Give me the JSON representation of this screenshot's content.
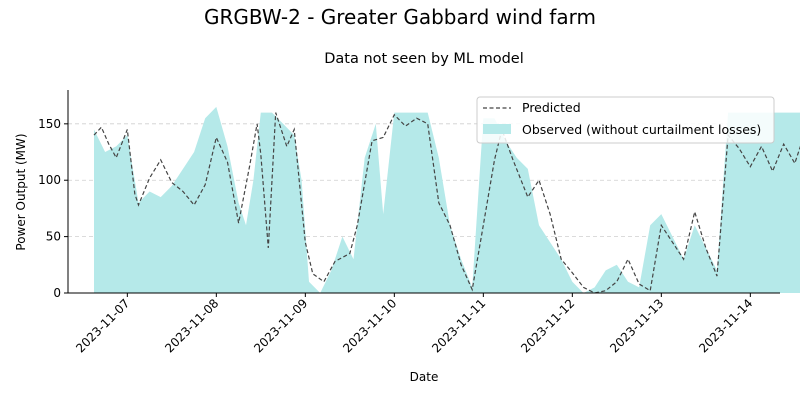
{
  "chart_data": {
    "type": "area",
    "suptitle": "GRGBW-2 - Greater Gabbard wind farm",
    "title": "Data not seen by ML model",
    "xlabel": "Date",
    "ylabel": "Power Output (MW)",
    "xlim": [
      "2023-11-06T08:00",
      "2023-11-14T08:00"
    ],
    "ylim": [
      0,
      180
    ],
    "yticks": [
      0,
      50,
      100,
      150
    ],
    "xticks": [
      "2023-11-07",
      "2023-11-08",
      "2023-11-09",
      "2023-11-10",
      "2023-11-11",
      "2023-11-12",
      "2023-11-13",
      "2023-11-14"
    ],
    "grid": "horizontal dashed",
    "legend_position": "upper right",
    "colors": {
      "observed_fill": "#b5e9e9",
      "predicted_line": "#444444"
    },
    "series": [
      {
        "name": "Predicted",
        "style": "dashed line",
        "points": [
          [
            "2023-11-06T15:00",
            140
          ],
          [
            "2023-11-06T17:00",
            147
          ],
          [
            "2023-11-06T19:00",
            132
          ],
          [
            "2023-11-06T21:00",
            120
          ],
          [
            "2023-11-07T00:00",
            145
          ],
          [
            "2023-11-07T02:00",
            88
          ],
          [
            "2023-11-07T03:00",
            78
          ],
          [
            "2023-11-07T06:00",
            102
          ],
          [
            "2023-11-07T09:00",
            118
          ],
          [
            "2023-11-07T12:00",
            98
          ],
          [
            "2023-11-07T15:00",
            90
          ],
          [
            "2023-11-07T18:00",
            78
          ],
          [
            "2023-11-07T21:00",
            96
          ],
          [
            "2023-11-08T00:00",
            138
          ],
          [
            "2023-11-08T03:00",
            116
          ],
          [
            "2023-11-08T06:00",
            62
          ],
          [
            "2023-11-08T09:00",
            113
          ],
          [
            "2023-11-08T11:00",
            150
          ],
          [
            "2023-11-08T12:00",
            123
          ],
          [
            "2023-11-08T14:00",
            40
          ],
          [
            "2023-11-08T16:00",
            160
          ],
          [
            "2023-11-08T19:00",
            130
          ],
          [
            "2023-11-08T21:00",
            145
          ],
          [
            "2023-11-09T00:00",
            45
          ],
          [
            "2023-11-09T02:00",
            17
          ],
          [
            "2023-11-09T05:00",
            10
          ],
          [
            "2023-11-09T08:00",
            28
          ],
          [
            "2023-11-09T12:00",
            35
          ],
          [
            "2023-11-09T14:00",
            60
          ],
          [
            "2023-11-09T18:00",
            135
          ],
          [
            "2023-11-09T21:00",
            138
          ],
          [
            "2023-11-10T00:00",
            158
          ],
          [
            "2023-11-10T03:00",
            148
          ],
          [
            "2023-11-10T06:00",
            155
          ],
          [
            "2023-11-10T09:00",
            150
          ],
          [
            "2023-11-10T12:00",
            80
          ],
          [
            "2023-11-10T15:00",
            60
          ],
          [
            "2023-11-10T18:00",
            25
          ],
          [
            "2023-11-10T21:00",
            3
          ],
          [
            "2023-11-11T00:00",
            60
          ],
          [
            "2023-11-11T03:00",
            118
          ],
          [
            "2023-11-11T05:00",
            145
          ],
          [
            "2023-11-11T08:00",
            118
          ],
          [
            "2023-11-11T12:00",
            85
          ],
          [
            "2023-11-11T15:00",
            100
          ],
          [
            "2023-11-11T18:00",
            70
          ],
          [
            "2023-11-11T21:00",
            30
          ],
          [
            "2023-11-12T00:00",
            18
          ],
          [
            "2023-11-12T03:00",
            5
          ],
          [
            "2023-11-12T06:00",
            0
          ],
          [
            "2023-11-12T09:00",
            2
          ],
          [
            "2023-11-12T12:00",
            10
          ],
          [
            "2023-11-12T15:00",
            30
          ],
          [
            "2023-11-12T18:00",
            8
          ],
          [
            "2023-11-12T21:00",
            2
          ],
          [
            "2023-11-13T00:00",
            60
          ],
          [
            "2023-11-13T03:00",
            45
          ],
          [
            "2023-11-13T06:00",
            30
          ],
          [
            "2023-11-13T09:00",
            72
          ],
          [
            "2023-11-13T12:00",
            40
          ],
          [
            "2023-11-13T15:00",
            15
          ],
          [
            "2023-11-13T18:00",
            140
          ],
          [
            "2023-11-13T21:00",
            128
          ],
          [
            "2023-11-14T00:00",
            112
          ],
          [
            "2023-11-14T03:00",
            130
          ],
          [
            "2023-11-14T06:00",
            108
          ],
          [
            "2023-11-14T09:00",
            132
          ],
          [
            "2023-11-14T12:00",
            115
          ],
          [
            "2023-11-14T15:00",
            145
          ],
          [
            "2023-11-14T17:00",
            150
          ]
        ]
      },
      {
        "name": "Observed (without curtailment losses)",
        "style": "filled area",
        "points": [
          [
            "2023-11-06T15:00",
            145
          ],
          [
            "2023-11-06T18:00",
            125
          ],
          [
            "2023-11-06T21:00",
            130
          ],
          [
            "2023-11-07T00:00",
            140
          ],
          [
            "2023-11-07T03:00",
            80
          ],
          [
            "2023-11-07T06:00",
            90
          ],
          [
            "2023-11-07T09:00",
            85
          ],
          [
            "2023-11-07T12:00",
            95
          ],
          [
            "2023-11-07T15:00",
            110
          ],
          [
            "2023-11-07T18:00",
            125
          ],
          [
            "2023-11-07T21:00",
            155
          ],
          [
            "2023-11-08T00:00",
            165
          ],
          [
            "2023-11-08T03:00",
            130
          ],
          [
            "2023-11-08T06:00",
            80
          ],
          [
            "2023-11-08T08:00",
            60
          ],
          [
            "2023-11-08T10:00",
            100
          ],
          [
            "2023-11-08T12:00",
            160
          ],
          [
            "2023-11-08T15:00",
            160
          ],
          [
            "2023-11-08T18:00",
            150
          ],
          [
            "2023-11-08T21:00",
            140
          ],
          [
            "2023-11-08T23:00",
            100
          ],
          [
            "2023-11-09T01:00",
            10
          ],
          [
            "2023-11-09T04:00",
            0
          ],
          [
            "2023-11-09T07:00",
            20
          ],
          [
            "2023-11-09T10:00",
            50
          ],
          [
            "2023-11-09T13:00",
            30
          ],
          [
            "2023-11-09T16:00",
            120
          ],
          [
            "2023-11-09T19:00",
            150
          ],
          [
            "2023-11-09T21:00",
            70
          ],
          [
            "2023-11-10T00:00",
            160
          ],
          [
            "2023-11-10T03:00",
            160
          ],
          [
            "2023-11-10T06:00",
            160
          ],
          [
            "2023-11-10T09:00",
            160
          ],
          [
            "2023-11-10T12:00",
            120
          ],
          [
            "2023-11-10T15:00",
            60
          ],
          [
            "2023-11-10T18:00",
            30
          ],
          [
            "2023-11-10T21:00",
            5
          ],
          [
            "2023-11-11T00:00",
            155
          ],
          [
            "2023-11-11T03:00",
            155
          ],
          [
            "2023-11-11T06:00",
            135
          ],
          [
            "2023-11-11T09:00",
            120
          ],
          [
            "2023-11-11T12:00",
            110
          ],
          [
            "2023-11-11T15:00",
            60
          ],
          [
            "2023-11-11T18:00",
            45
          ],
          [
            "2023-11-11T21:00",
            30
          ],
          [
            "2023-11-12T00:00",
            10
          ],
          [
            "2023-11-12T03:00",
            0
          ],
          [
            "2023-11-12T06:00",
            5
          ],
          [
            "2023-11-12T09:00",
            20
          ],
          [
            "2023-11-12T12:00",
            25
          ],
          [
            "2023-11-12T15:00",
            10
          ],
          [
            "2023-11-12T18:00",
            5
          ],
          [
            "2023-11-12T21:00",
            60
          ],
          [
            "2023-11-13T00:00",
            70
          ],
          [
            "2023-11-13T03:00",
            50
          ],
          [
            "2023-11-13T06:00",
            30
          ],
          [
            "2023-11-13T09:00",
            60
          ],
          [
            "2023-11-13T12:00",
            40
          ],
          [
            "2023-11-13T15:00",
            20
          ],
          [
            "2023-11-13T18:00",
            160
          ],
          [
            "2023-11-13T21:00",
            160
          ],
          [
            "2023-11-14T00:00",
            160
          ],
          [
            "2023-11-14T03:00",
            160
          ],
          [
            "2023-11-14T06:00",
            160
          ],
          [
            "2023-11-14T09:00",
            160
          ],
          [
            "2023-11-14T12:00",
            160
          ],
          [
            "2023-11-14T15:00",
            160
          ],
          [
            "2023-11-14T17:00",
            160
          ]
        ]
      }
    ]
  }
}
